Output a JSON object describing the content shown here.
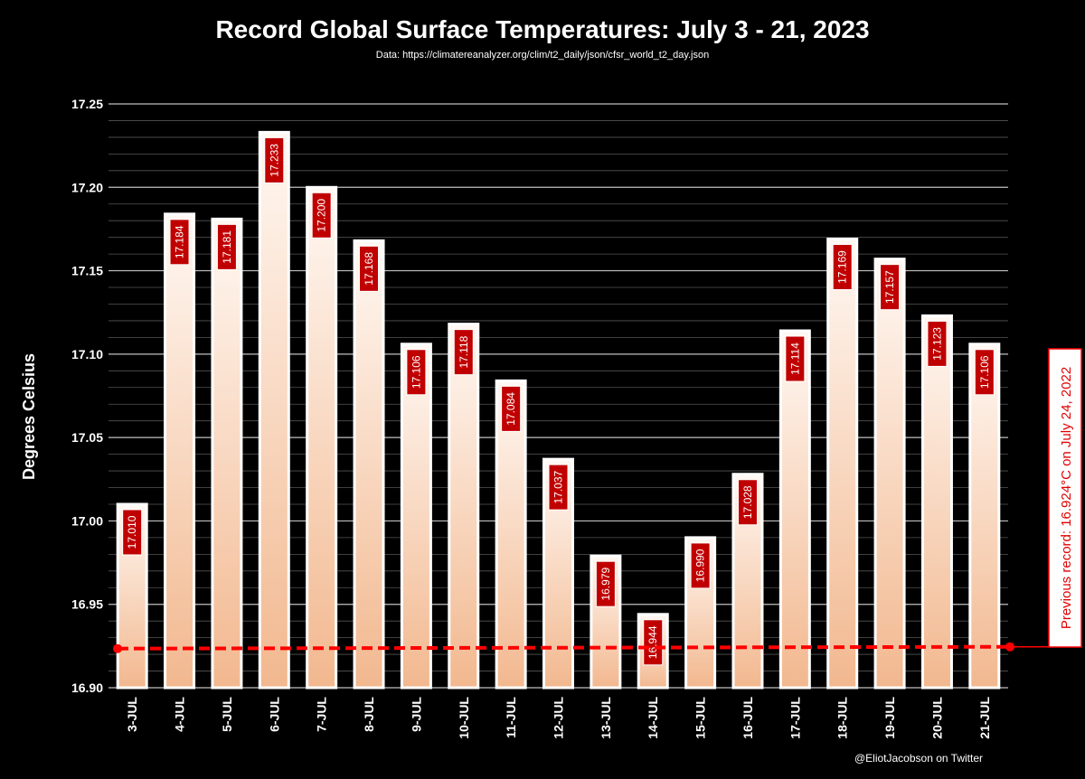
{
  "chart_data": {
    "type": "bar",
    "title": "Record Global Surface Temperatures: July 3 - 21, 2023",
    "subtitle": "Data: https://climatereanalyzer.org/clim/t2_daily/json/cfsr_world_t2_day.json",
    "ylabel": "Degrees Celsius",
    "ylim": [
      16.9,
      17.25
    ],
    "yticks": [
      "16.90",
      "16.95",
      "17.00",
      "17.05",
      "17.10",
      "17.15",
      "17.20",
      "17.25"
    ],
    "grid": true,
    "categories": [
      "3-JUL",
      "4-JUL",
      "5-JUL",
      "6-JUL",
      "7-JUL",
      "8-JUL",
      "9-JUL",
      "10-JUL",
      "11-JUL",
      "12-JUL",
      "13-JUL",
      "14-JUL",
      "15-JUL",
      "16-JUL",
      "17-JUL",
      "18-JUL",
      "19-JUL",
      "20-JUL",
      "21-JUL"
    ],
    "values": [
      17.01,
      17.184,
      17.181,
      17.233,
      17.2,
      17.168,
      17.106,
      17.118,
      17.084,
      17.037,
      16.979,
      16.944,
      16.99,
      17.028,
      17.114,
      17.169,
      17.157,
      17.123,
      17.106
    ],
    "value_labels": [
      "17.010",
      "17.184",
      "17.181",
      "17.233",
      "17.200",
      "17.168",
      "17.106",
      "17.118",
      "17.084",
      "17.037",
      "16.979",
      "16.944",
      "16.990",
      "17.028",
      "17.114",
      "17.169",
      "17.157",
      "17.123",
      "17.106"
    ],
    "reference_line": {
      "value": 16.924,
      "label": "Previous record: 16.924°C on July 24, 2022",
      "color": "#ff0000"
    },
    "credit": "@EliotJacobson on Twitter",
    "colors": {
      "background": "#000000",
      "bar_top": "#fff8f3",
      "bar_bottom": "#f2b88f",
      "bar_border": "#ffffff",
      "label_fill": "#c00000",
      "text": "#ffffff"
    }
  }
}
